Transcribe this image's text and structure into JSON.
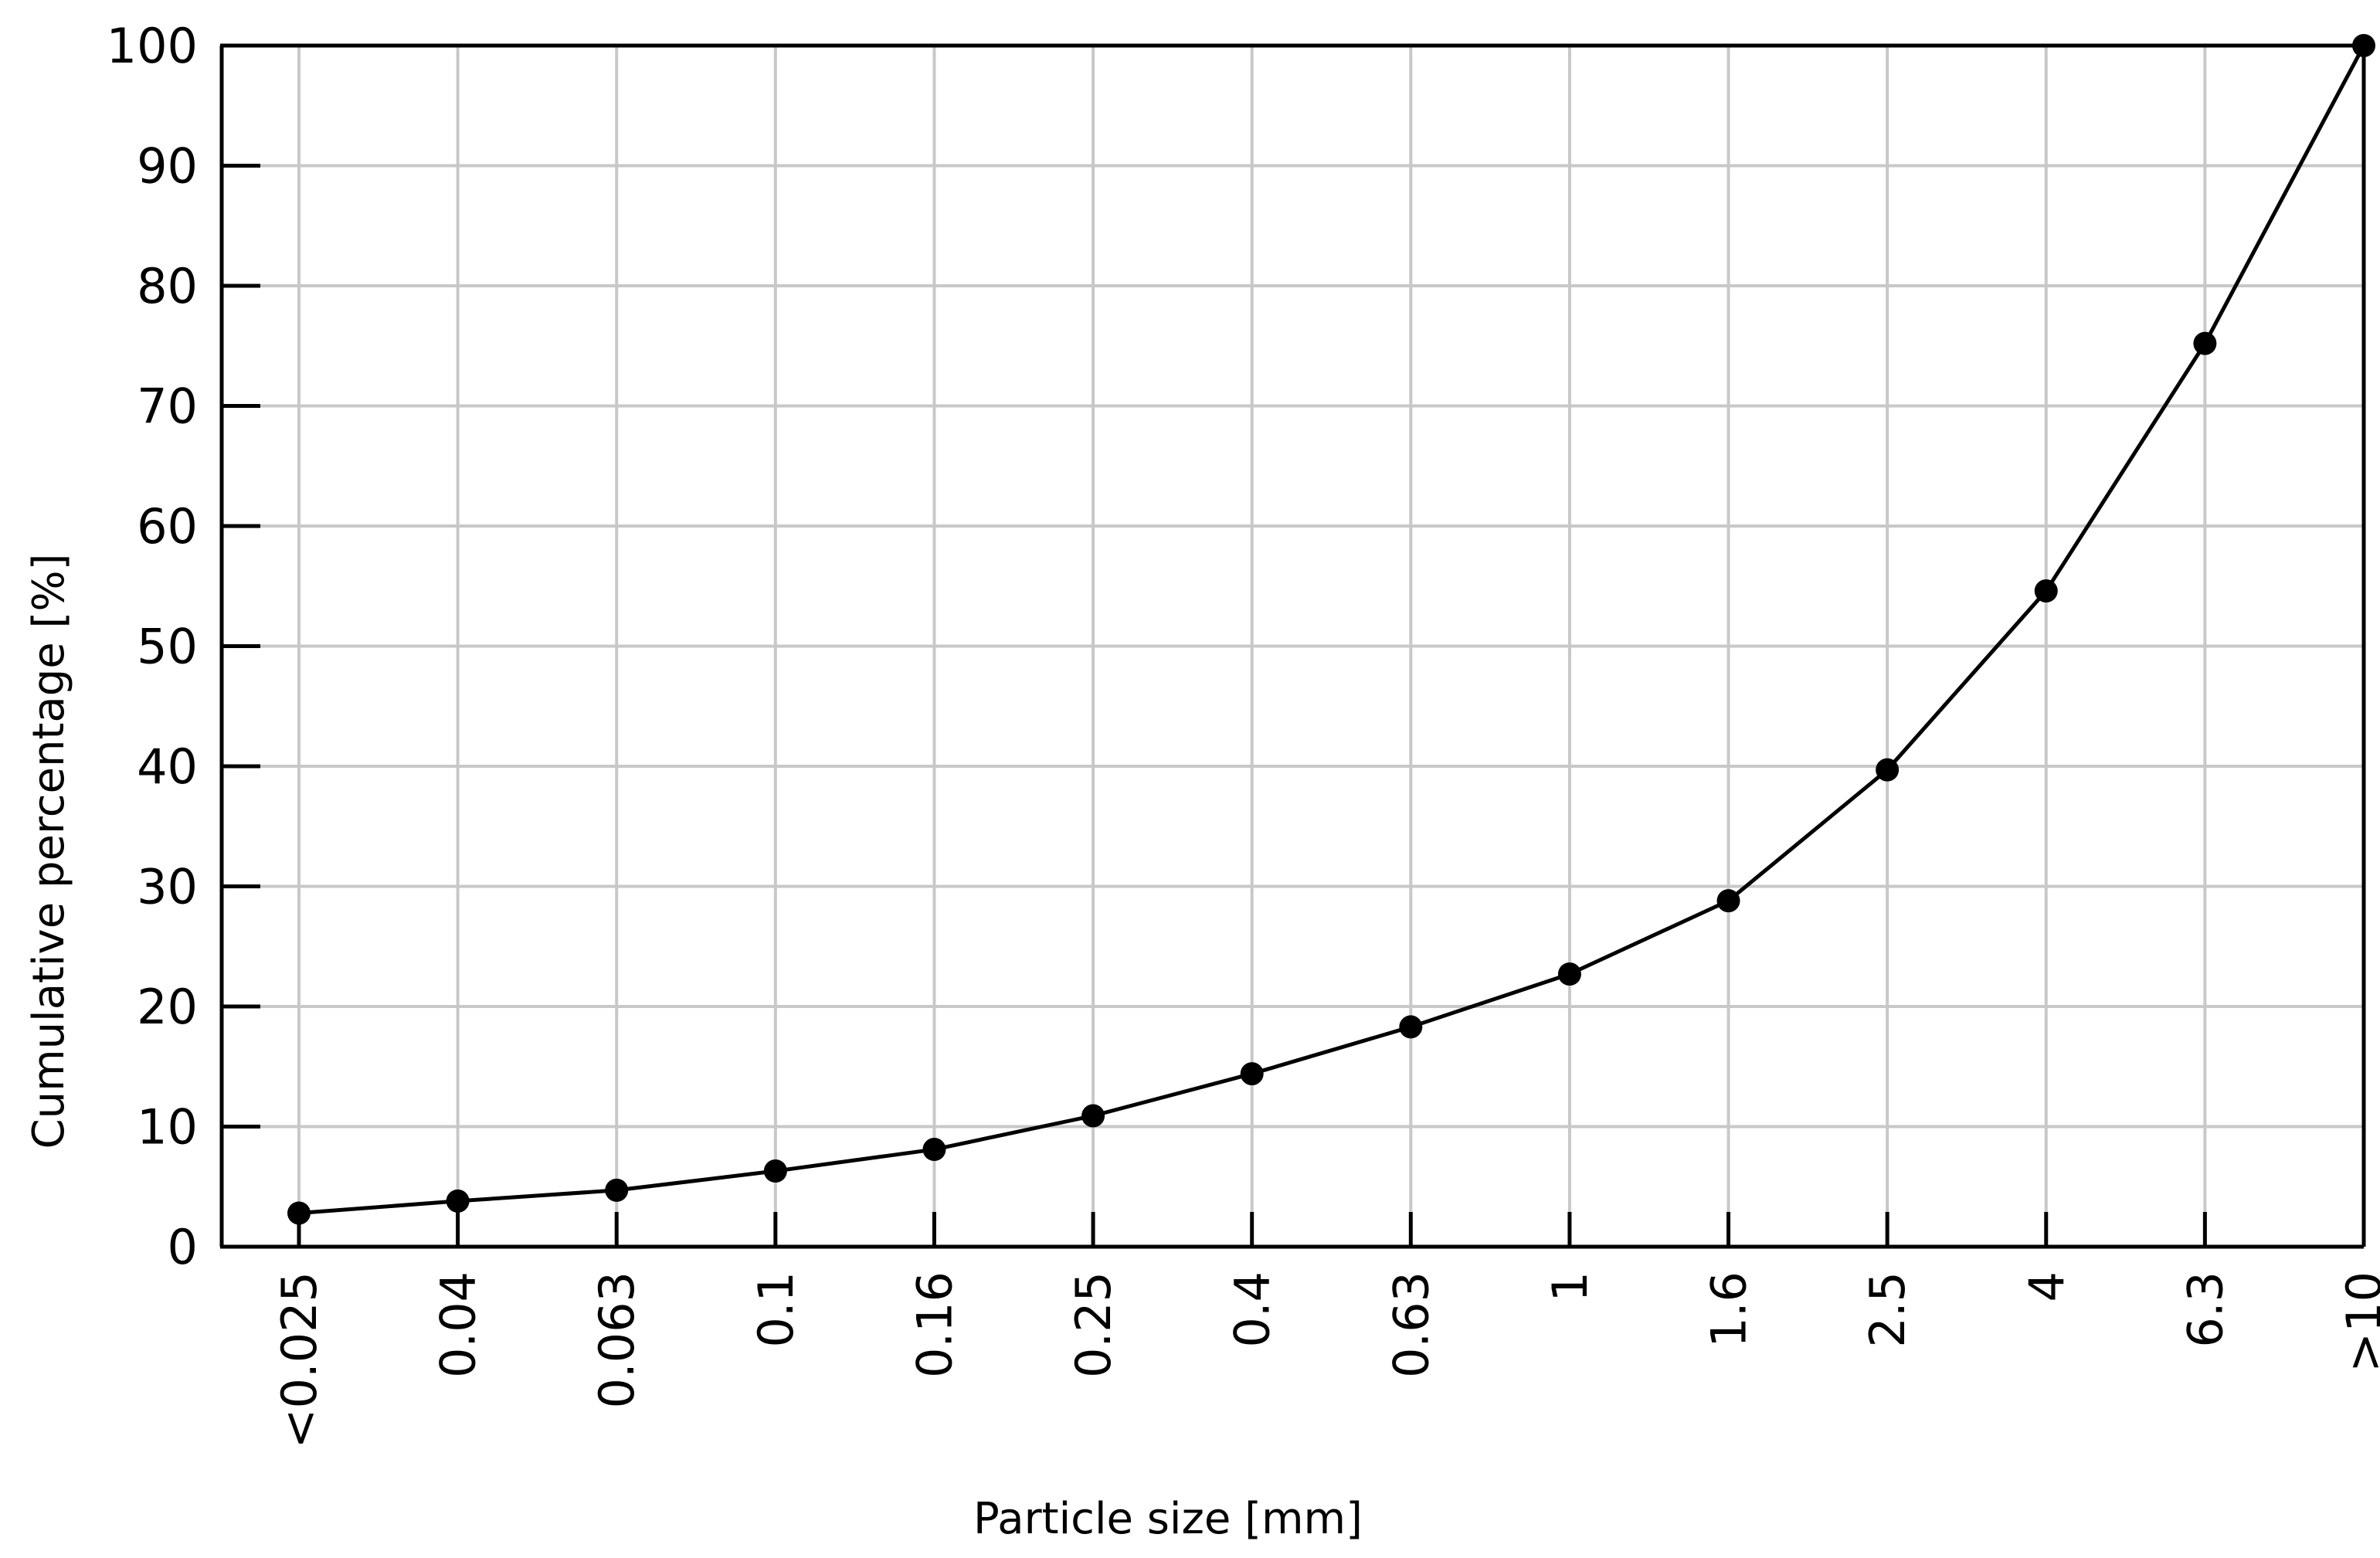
{
  "chart_data": {
    "type": "line",
    "title": "",
    "xlabel": "Particle size [mm]",
    "ylabel": "Cumulative percentage [%]",
    "categories": [
      "<0.025",
      "0.04",
      "0.063",
      "0.1",
      "0.16",
      "0.25",
      "0.4",
      "0.63",
      "1",
      "1.6",
      "2.5",
      "4",
      "6.3",
      ">10"
    ],
    "series": [
      {
        "values": [
          2.8,
          3.8,
          4.7,
          6.3,
          8.1,
          10.9,
          14.4,
          18.3,
          22.7,
          28.8,
          39.7,
          54.6,
          75.2,
          100
        ]
      }
    ],
    "ylim": [
      0,
      100
    ],
    "yticks": [
      0,
      10,
      20,
      30,
      40,
      50,
      60,
      70,
      80,
      90,
      100
    ],
    "grid": true,
    "legend": "none",
    "colors": {
      "line": "#000000",
      "grid": "#c8c8c8",
      "axis": "#000000"
    }
  }
}
